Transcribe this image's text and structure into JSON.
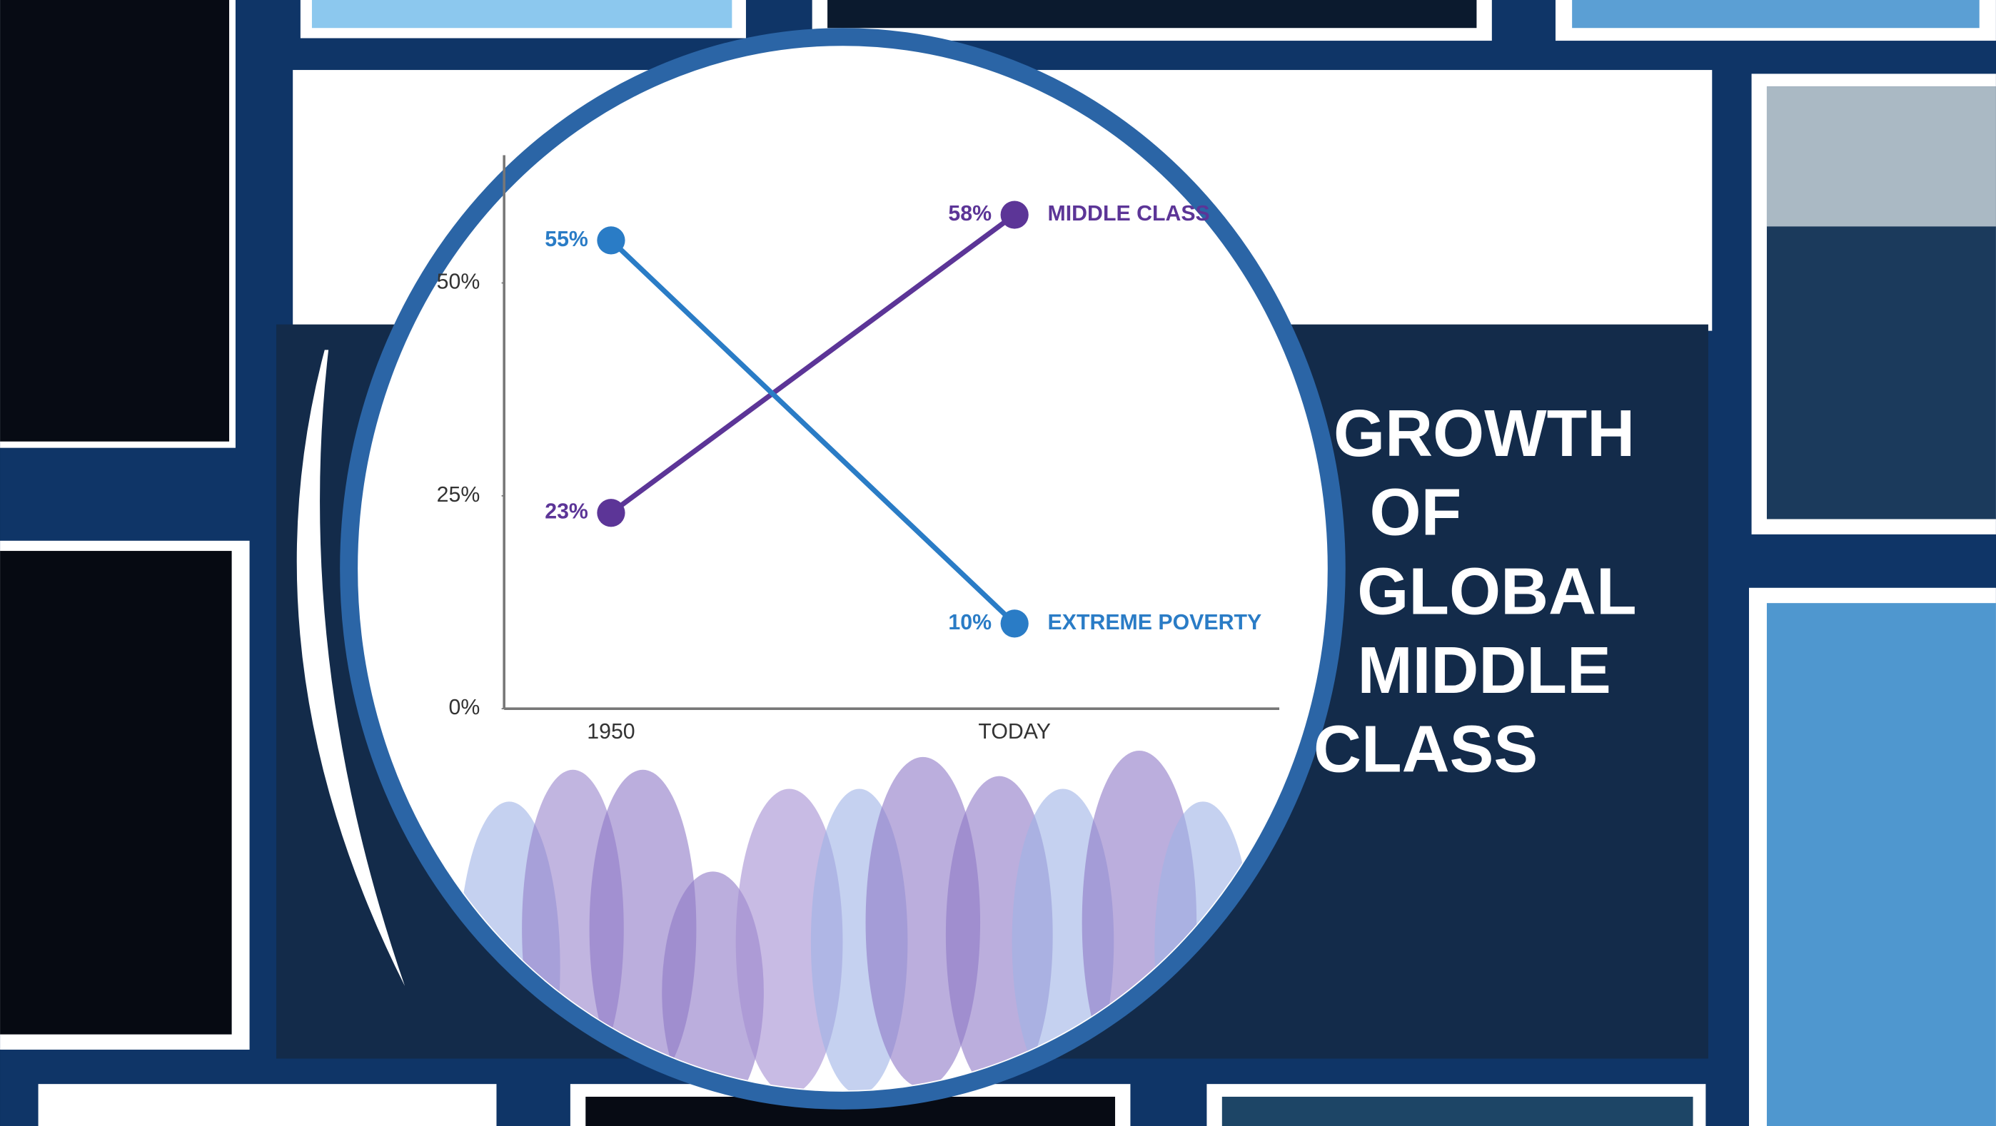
{
  "chart_data": {
    "type": "line",
    "title": "GROWTH OF GLOBAL MIDDLE CLASS",
    "categories": [
      "1950",
      "TODAY"
    ],
    "series": [
      {
        "name": "MIDDLE CLASS",
        "color": "#5c3597",
        "values": [
          23,
          58
        ],
        "value_labels": [
          "23%",
          "58%"
        ]
      },
      {
        "name": "EXTREME POVERTY",
        "color": "#2a7cc6",
        "values": [
          55,
          10
        ],
        "value_labels": [
          "55%",
          "10%"
        ]
      }
    ],
    "ylim": [
      0,
      65
    ],
    "yticks": [
      {
        "value": 0,
        "label": "0%"
      },
      {
        "value": 25,
        "label": "25%"
      },
      {
        "value": 50,
        "label": "50%"
      }
    ],
    "grid": false
  }
}
